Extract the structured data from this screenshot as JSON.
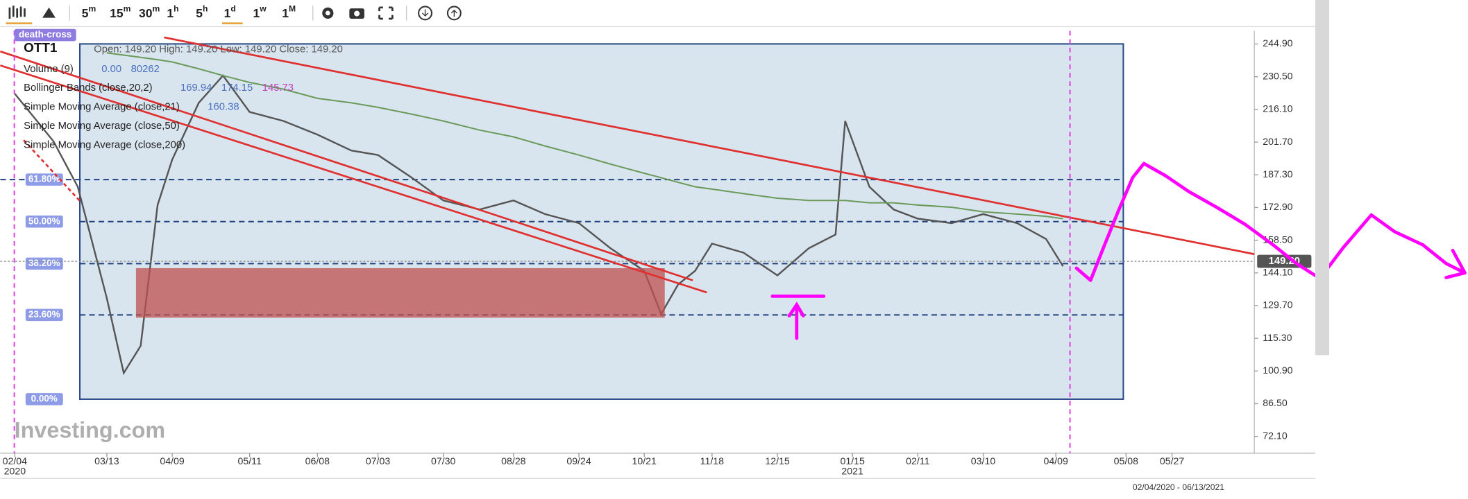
{
  "toolbar": {
    "intervals": [
      {
        "num": "5",
        "unit": "m"
      },
      {
        "num": "15",
        "unit": "m"
      },
      {
        "num": "30",
        "unit": "m"
      },
      {
        "num": "1",
        "unit": "h"
      },
      {
        "num": "5",
        "unit": "h"
      },
      {
        "num": "1",
        "unit": "d"
      },
      {
        "num": "1",
        "unit": "w"
      },
      {
        "num": "1",
        "unit": "M"
      }
    ]
  },
  "chart_data": {
    "type": "line",
    "symbol": "OTT1",
    "tag": "death-cross",
    "ohlc_label": "Open: 149.20   High: 149.20   Low: 149.20   Close: 149.20",
    "indicators": [
      {
        "name": "Volume (9)",
        "readings": [
          "0.00",
          "80262"
        ]
      },
      {
        "name": "Bollinger Bands (close,20,2)",
        "readings": [
          "169.94",
          "174.15",
          "145.73"
        ]
      },
      {
        "name": "Simple Moving Average (close,21)",
        "readings": [
          "160.38"
        ]
      },
      {
        "name": "Simple Moving Average (close,50)",
        "readings": []
      },
      {
        "name": "Simple Moving Average (close,200)",
        "readings": []
      }
    ],
    "watermark": "Investing.com",
    "range_label": "02/04/2020 - 06/13/2021",
    "x": [
      "2020-02-04",
      "2020-02-20",
      "2020-03-01",
      "2020-03-13",
      "2020-03-20",
      "2020-03-27",
      "2020-04-03",
      "2020-04-09",
      "2020-04-20",
      "2020-04-30",
      "2020-05-11",
      "2020-05-25",
      "2020-06-08",
      "2020-06-22",
      "2020-07-03",
      "2020-07-17",
      "2020-07-30",
      "2020-08-14",
      "2020-08-28",
      "2020-09-10",
      "2020-09-24",
      "2020-10-07",
      "2020-10-21",
      "2020-10-28",
      "2020-11-04",
      "2020-11-11",
      "2020-11-18",
      "2020-12-01",
      "2020-12-15",
      "2020-12-28",
      "2021-01-08",
      "2021-01-12",
      "2021-01-22",
      "2021-02-01",
      "2021-02-11",
      "2021-02-25",
      "2021-03-10",
      "2021-03-24",
      "2021-04-05",
      "2021-04-12"
    ],
    "series": [
      {
        "name": "OTT1",
        "color": "#555555",
        "values": [
          223,
          202,
          182,
          133,
          100,
          112,
          174,
          194,
          219,
          231,
          215,
          211,
          205,
          198,
          196,
          186,
          176,
          172,
          176,
          170,
          166,
          155,
          145,
          126,
          139,
          145,
          157,
          153,
          143,
          155,
          161,
          211,
          182,
          172,
          168,
          166,
          170,
          166,
          159,
          147
        ]
      },
      {
        "name": "Simple Moving Average (close,200)",
        "color": "#6a9a5a",
        "values": [
          null,
          null,
          null,
          241,
          240,
          239,
          238,
          237,
          234,
          231,
          228,
          225,
          221,
          219,
          217,
          214,
          211,
          207,
          204,
          200,
          196,
          192,
          188,
          186,
          184,
          182,
          181,
          179,
          177,
          176,
          176,
          176,
          175,
          175,
          174,
          173,
          171,
          170,
          169,
          168
        ]
      }
    ],
    "xlim": [
      "2020-01-29",
      "2021-06-30"
    ],
    "xticks": [
      {
        "value": "2020-02-04",
        "label": "02/04"
      },
      {
        "value": "2020-03-13",
        "label": "03/13"
      },
      {
        "value": "2020-04-09",
        "label": "04/09"
      },
      {
        "value": "2020-05-11",
        "label": "05/11"
      },
      {
        "value": "2020-06-08",
        "label": "06/08"
      },
      {
        "value": "2020-07-03",
        "label": "07/03"
      },
      {
        "value": "2020-07-30",
        "label": "07/30"
      },
      {
        "value": "2020-08-28",
        "label": "08/28"
      },
      {
        "value": "2020-09-24",
        "label": "09/24"
      },
      {
        "value": "2020-10-21",
        "label": "10/21"
      },
      {
        "value": "2020-11-18",
        "label": "11/18"
      },
      {
        "value": "2020-12-15",
        "label": "12/15"
      },
      {
        "value": "2021-01-15",
        "label": "01/15"
      },
      {
        "value": "2021-02-11",
        "label": "02/11"
      },
      {
        "value": "2021-03-10",
        "label": "03/10"
      },
      {
        "value": "2021-04-09",
        "label": "04/09"
      },
      {
        "value": "2021-05-08",
        "label": "05/08"
      },
      {
        "value": "2021-05-27",
        "label": "05/27"
      }
    ],
    "year_labels": [
      {
        "value": "2020-02-04",
        "label": "2020"
      },
      {
        "value": "2021-01-15",
        "label": "2021"
      }
    ],
    "ylim": [
      64.7,
      250.7
    ],
    "yticks": [
      {
        "value": 72.1,
        "label": "72.10"
      },
      {
        "value": 86.5,
        "label": "86.50"
      },
      {
        "value": 100.9,
        "label": "100.90"
      },
      {
        "value": 115.3,
        "label": "115.30"
      },
      {
        "value": 129.7,
        "label": "129.70"
      },
      {
        "value": 144.1,
        "label": "144.10"
      },
      {
        "value": 158.5,
        "label": "158.50"
      },
      {
        "value": 172.9,
        "label": "172.90"
      },
      {
        "value": 187.3,
        "label": "187.30"
      },
      {
        "value": 201.7,
        "label": "201.70"
      },
      {
        "value": 216.1,
        "label": "216.10"
      },
      {
        "value": 230.5,
        "label": "230.50"
      },
      {
        "value": 244.9,
        "label": "244.90"
      }
    ],
    "fib_levels": [
      {
        "label": "0.00%",
        "value": 88.5
      },
      {
        "label": "23.60%",
        "value": 125.6
      },
      {
        "label": "38.20%",
        "value": 148.2
      },
      {
        "label": "50.00%",
        "value": 166.7
      },
      {
        "label": "61.80%",
        "value": 185.2
      }
    ],
    "last_price": {
      "value": 149.2,
      "label": "149.20"
    }
  }
}
